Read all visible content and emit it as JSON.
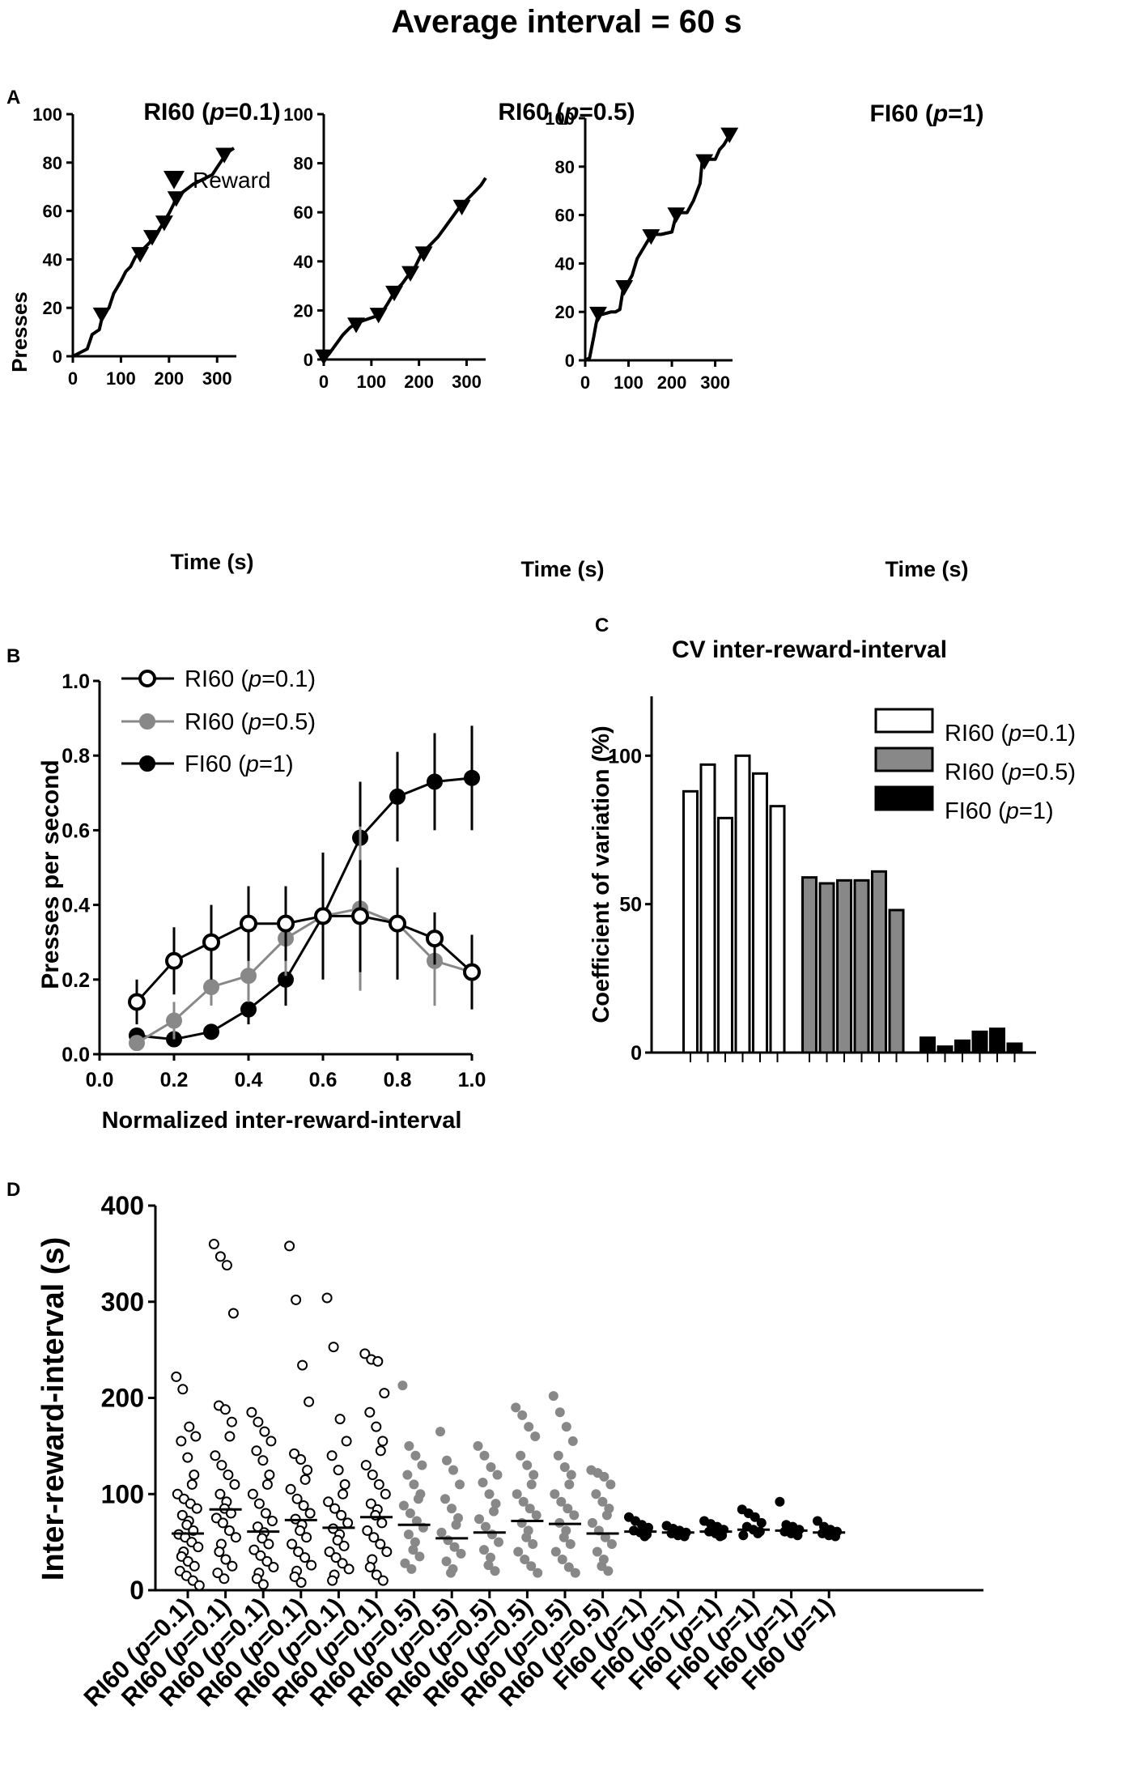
{
  "figure_title": "Average interval = 60 s",
  "colors": {
    "p01_fill": "#ffffff",
    "p05_fill": "#888888",
    "fi_fill": "#000000",
    "ink": "#000000"
  },
  "icons": {
    "reward_marker": "inverted-triangle-icon"
  },
  "panels": {
    "A": {
      "label": "A",
      "ylabel": "Presses",
      "xlabel": "Time (s)",
      "legend_reward": "Reward",
      "subplots": [
        {
          "title_prefix": "RI60 (",
          "title_p": "p",
          "title_suffix": "=0.1)"
        },
        {
          "title_prefix": "RI60 (",
          "title_p": "p",
          "title_suffix": "=0.5)"
        },
        {
          "title_prefix": "FI60 (",
          "title_p": "p",
          "title_suffix": "=1)"
        }
      ]
    },
    "B": {
      "label": "B",
      "ylabel": "Presses per second",
      "xlabel": "Normalized inter-reward-interval",
      "legend": [
        {
          "prefix": "RI60 (",
          "p": "p",
          "suffix": "=0.1)"
        },
        {
          "prefix": "RI60 (",
          "p": "p",
          "suffix": "=0.5)"
        },
        {
          "prefix": "FI60 (",
          "p": "p",
          "suffix": "=1)"
        }
      ]
    },
    "C": {
      "label": "C",
      "title": "CV inter-reward-interval",
      "ylabel": "Coefficient of variation (%)",
      "legend": [
        {
          "prefix": "RI60 (",
          "p": "p",
          "suffix": "=0.1)"
        },
        {
          "prefix": "RI60 (",
          "p": "p",
          "suffix": "=0.5)"
        },
        {
          "prefix": "FI60 (",
          "p": "p",
          "suffix": "=1)"
        }
      ]
    },
    "D": {
      "label": "D",
      "ylabel": "Inter-reward-interval (s)"
    }
  },
  "chart_data": [
    {
      "id": "A1",
      "type": "line",
      "title": "RI60 (p=0.1)",
      "xlabel": "Time (s)",
      "ylabel": "Presses",
      "xlim": [
        0,
        340
      ],
      "ylim": [
        0,
        100
      ],
      "xticks": [
        0,
        100,
        200,
        300
      ],
      "yticks": [
        0,
        20,
        40,
        60,
        80,
        100
      ],
      "x": [
        0,
        30,
        35,
        40,
        55,
        62,
        75,
        85,
        100,
        110,
        120,
        130,
        140,
        145,
        160,
        165,
        175,
        185,
        190,
        200,
        210,
        215,
        230,
        250,
        270,
        290,
        300,
        310,
        320,
        335
      ],
      "y": [
        0,
        3,
        6,
        9,
        11,
        17,
        20,
        26,
        31,
        35,
        37,
        41,
        43,
        44,
        47,
        49,
        51,
        54,
        56,
        59,
        63,
        66,
        68,
        71,
        73,
        75,
        78,
        81,
        84,
        86
      ],
      "rewards": {
        "x": [
          60,
          140,
          165,
          190,
          215,
          315
        ],
        "y": [
          17,
          42,
          49,
          55,
          65,
          83
        ]
      }
    },
    {
      "id": "A2",
      "type": "line",
      "title": "RI60 (p=0.5)",
      "xlabel": "Time (s)",
      "ylabel": "Presses",
      "xlim": [
        0,
        340
      ],
      "ylim": [
        0,
        100
      ],
      "xticks": [
        0,
        100,
        200,
        300
      ],
      "yticks": [
        0,
        20,
        40,
        60,
        80,
        100
      ],
      "x": [
        0,
        10,
        25,
        40,
        55,
        70,
        85,
        100,
        115,
        125,
        135,
        150,
        165,
        180,
        190,
        205,
        220,
        240,
        255,
        270,
        285,
        300,
        315,
        330,
        340
      ],
      "y": [
        0,
        2,
        6,
        10,
        13,
        15,
        16,
        17,
        18,
        20,
        23,
        28,
        31,
        35,
        37,
        43,
        46,
        50,
        54,
        58,
        62,
        65,
        68,
        71,
        74
      ],
      "rewards": {
        "x": [
          0,
          68,
          115,
          148,
          182,
          210,
          290
        ],
        "y": [
          1,
          14,
          18,
          27,
          35,
          43,
          62
        ]
      }
    },
    {
      "id": "A3",
      "type": "line",
      "title": "FI60 (p=1)",
      "xlabel": "Time (s)",
      "ylabel": "Presses",
      "xlim": [
        0,
        340
      ],
      "ylim": [
        0,
        100
      ],
      "xticks": [
        0,
        100,
        200,
        300
      ],
      "yticks": [
        0,
        20,
        40,
        60,
        80,
        100
      ],
      "x": [
        0,
        10,
        20,
        25,
        30,
        40,
        60,
        70,
        80,
        88,
        95,
        108,
        120,
        140,
        150,
        160,
        175,
        200,
        210,
        220,
        235,
        250,
        265,
        270,
        280,
        300,
        310,
        320,
        333
      ],
      "y": [
        0,
        1,
        10,
        15,
        19,
        19,
        20,
        20,
        21,
        30,
        31,
        35,
        42,
        48,
        51,
        52,
        52,
        53,
        60,
        61,
        61,
        66,
        73,
        82,
        83,
        83,
        87,
        89,
        93
      ],
      "rewards": {
        "x": [
          30,
          90,
          152,
          210,
          275,
          333
        ],
        "y": [
          19,
          30,
          51,
          60,
          82,
          93
        ]
      }
    },
    {
      "id": "B",
      "type": "line",
      "xlabel": "Normalized inter-reward-interval",
      "ylabel": "Presses per second",
      "xlim": [
        0,
        1.0
      ],
      "ylim": [
        0,
        1.0
      ],
      "xticks": [
        0.0,
        0.2,
        0.4,
        0.6,
        0.8,
        1.0
      ],
      "yticks": [
        0.0,
        0.2,
        0.4,
        0.6,
        0.8,
        1.0
      ],
      "x": [
        0.1,
        0.2,
        0.3,
        0.4,
        0.5,
        0.6,
        0.7,
        0.8,
        0.9,
        1.0
      ],
      "series": [
        {
          "name": "RI60 (p=0.1)",
          "marker": "open",
          "values": [
            0.14,
            0.25,
            0.3,
            0.35,
            0.35,
            0.37,
            0.37,
            0.35,
            0.31,
            0.22
          ],
          "errors": [
            0.06,
            0.09,
            0.1,
            0.1,
            0.1,
            0.17,
            0.15,
            0.15,
            0.07,
            0.1
          ]
        },
        {
          "name": "RI60 (p=0.5)",
          "marker": "gray",
          "values": [
            0.03,
            0.09,
            0.18,
            0.21,
            0.31,
            0.37,
            0.39,
            0.35,
            0.25,
            0.22
          ],
          "errors": [
            0.02,
            0.05,
            0.05,
            0.07,
            0.1,
            0.17,
            0.22,
            0.15,
            0.12,
            0.1
          ]
        },
        {
          "name": "FI60 (p=1)",
          "marker": "filled",
          "values": [
            0.05,
            0.04,
            0.06,
            0.12,
            0.2,
            0.37,
            0.58,
            0.69,
            0.73,
            0.74
          ],
          "errors": [
            0.02,
            0.02,
            0.02,
            0.04,
            0.07,
            0.1,
            0.15,
            0.12,
            0.13,
            0.14
          ]
        }
      ]
    },
    {
      "id": "C",
      "type": "bar",
      "title": "CV inter-reward-interval",
      "ylabel": "Coefficient of variation (%)",
      "ylim": [
        0,
        120
      ],
      "yticks": [
        0,
        50,
        100
      ],
      "series": [
        {
          "name": "RI60 (p=0.1)",
          "values": [
            88,
            97,
            79,
            100,
            94,
            83
          ]
        },
        {
          "name": "RI60 (p=0.5)",
          "values": [
            59,
            57,
            58,
            58,
            61,
            48
          ]
        },
        {
          "name": "FI60 (p=1)",
          "values": [
            5,
            2,
            4,
            7,
            8,
            3
          ]
        }
      ]
    },
    {
      "id": "D",
      "type": "scatter",
      "ylabel": "Inter-reward-interval (s)",
      "ylim": [
        0,
        400
      ],
      "yticks": [
        0,
        100,
        200,
        300,
        400
      ],
      "categories": [
        "RI60 (p=0.1)",
        "RI60 (p=0.1)",
        "RI60 (p=0.1)",
        "RI60 (p=0.1)",
        "RI60 (p=0.1)",
        "RI60 (p=0.1)",
        "RI60 (p=0.5)",
        "RI60 (p=0.5)",
        "RI60 (p=0.5)",
        "RI60 (p=0.5)",
        "RI60 (p=0.5)",
        "RI60 (p=0.5)",
        "FI60 (p=1)",
        "FI60 (p=1)",
        "FI60 (p=1)",
        "FI60 (p=1)",
        "FI60 (p=1)",
        "FI60 (p=1)"
      ],
      "groups": [
        "p01",
        "p01",
        "p01",
        "p01",
        "p01",
        "p01",
        "p05",
        "p05",
        "p05",
        "p05",
        "p05",
        "p05",
        "fi",
        "fi",
        "fi",
        "fi",
        "fi",
        "fi"
      ],
      "medians": [
        59,
        84,
        61,
        73,
        65,
        76,
        68,
        54,
        60,
        72,
        69,
        59,
        61,
        60,
        61,
        63,
        62,
        60
      ],
      "points": [
        [
          222,
          209,
          170,
          160,
          155,
          138,
          120,
          110,
          100,
          95,
          90,
          85,
          78,
          72,
          68,
          62,
          58,
          55,
          50,
          45,
          40,
          35,
          30,
          25,
          20,
          15,
          10,
          5
        ],
        [
          360,
          347,
          338,
          288,
          192,
          188,
          175,
          160,
          140,
          130,
          120,
          110,
          100,
          92,
          85,
          80,
          75,
          70,
          62,
          55,
          48,
          40,
          32,
          25,
          18,
          12
        ],
        [
          185,
          175,
          165,
          155,
          145,
          135,
          120,
          110,
          100,
          90,
          80,
          72,
          66,
          60,
          54,
          48,
          42,
          36,
          30,
          24,
          18,
          12,
          6
        ],
        [
          358,
          302,
          234,
          196,
          142,
          136,
          125,
          115,
          105,
          95,
          88,
          80,
          74,
          68,
          62,
          55,
          48,
          40,
          34,
          26,
          20,
          14,
          8
        ],
        [
          304,
          253,
          178,
          155,
          140,
          125,
          110,
          100,
          92,
          85,
          78,
          70,
          64,
          58,
          52,
          46,
          40,
          34,
          28,
          22,
          16,
          10
        ],
        [
          246,
          240,
          238,
          205,
          185,
          170,
          155,
          145,
          130,
          120,
          110,
          100,
          90,
          84,
          78,
          70,
          62,
          55,
          48,
          40,
          32,
          24,
          16,
          10
        ],
        [
          213,
          150,
          140,
          130,
          120,
          110,
          100,
          95,
          88,
          80,
          72,
          65,
          58,
          50,
          42,
          35,
          28,
          22
        ],
        [
          165,
          135,
          125,
          110,
          95,
          85,
          75,
          68,
          60,
          52,
          45,
          38,
          30,
          22,
          18
        ],
        [
          150,
          140,
          128,
          120,
          112,
          100,
          90,
          82,
          74,
          66,
          58,
          50,
          42,
          34,
          26,
          20
        ],
        [
          190,
          182,
          170,
          160,
          140,
          130,
          120,
          110,
          100,
          92,
          85,
          78,
          70,
          62,
          55,
          48,
          40,
          32,
          25,
          18
        ],
        [
          202,
          185,
          170,
          155,
          140,
          128,
          120,
          110,
          100,
          92,
          85,
          78,
          70,
          62,
          55,
          48,
          40,
          32,
          24,
          18
        ],
        [
          125,
          122,
          118,
          110,
          100,
          92,
          85,
          78,
          70,
          62,
          55,
          48,
          40,
          32,
          25,
          20
        ],
        [
          76,
          72,
          68,
          65,
          62,
          60,
          58,
          56
        ],
        [
          67,
          64,
          62,
          60,
          59,
          57,
          56
        ],
        [
          72,
          69,
          66,
          63,
          61,
          59,
          57,
          56
        ],
        [
          84,
          80,
          76,
          70,
          66,
          63,
          61,
          59,
          57
        ],
        [
          92,
          68,
          66,
          63,
          61,
          59,
          57
        ],
        [
          72,
          66,
          63,
          61,
          59,
          57,
          56
        ]
      ]
    }
  ]
}
